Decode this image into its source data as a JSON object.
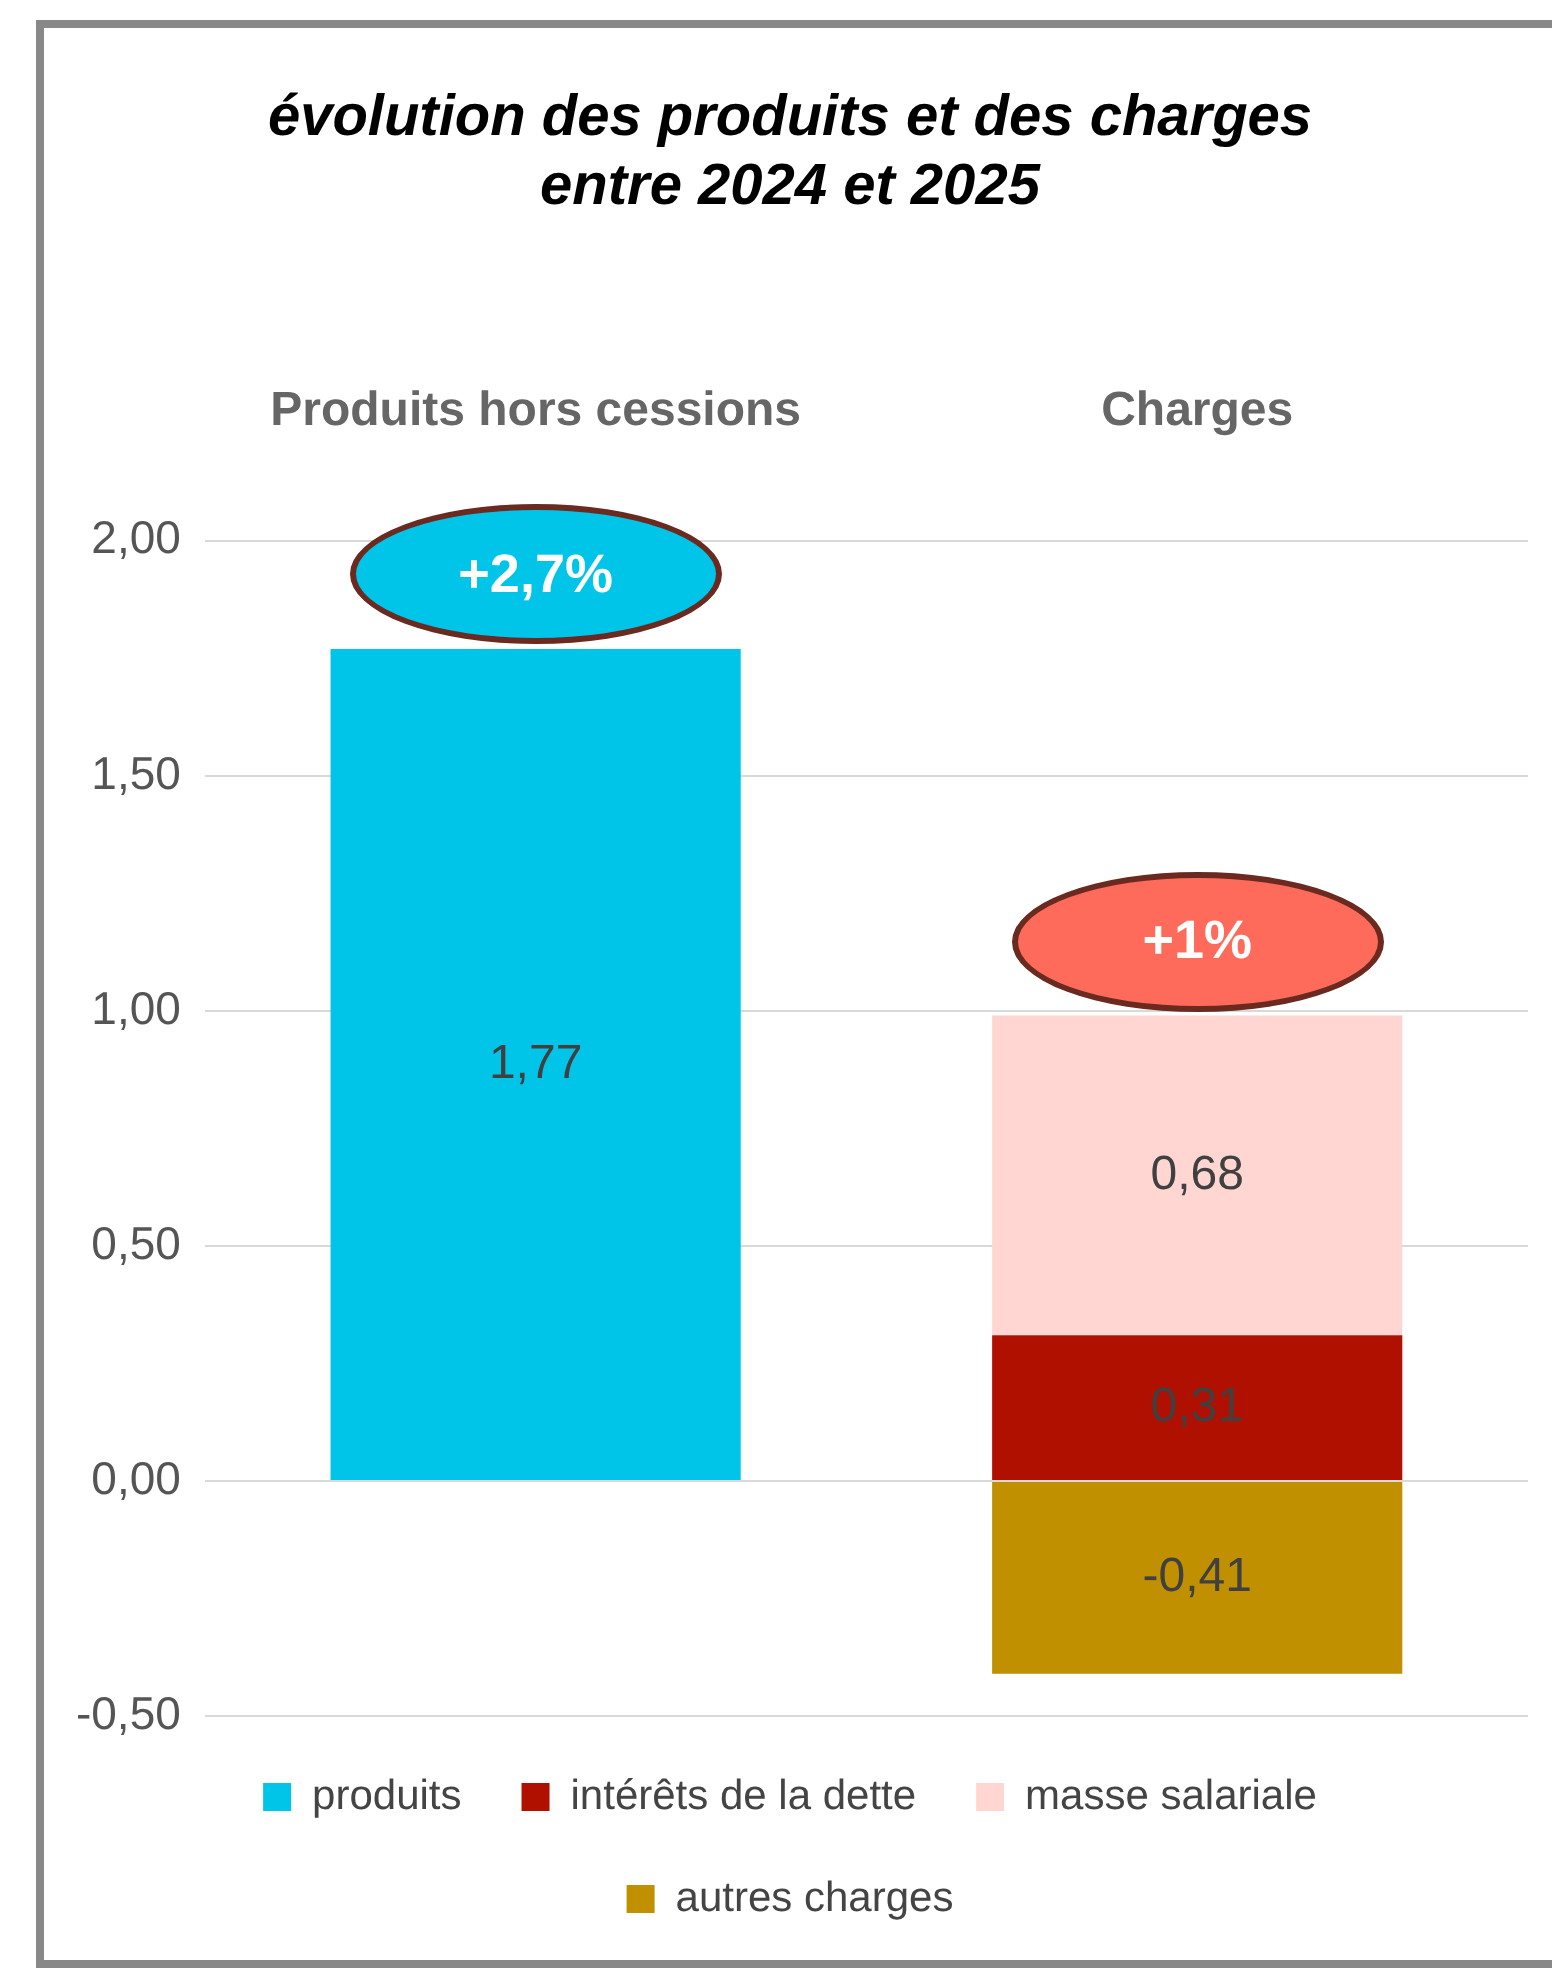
{
  "chart_data": {
    "type": "bar",
    "title": "évolution des produits et des charges\nentre 2024 et 2025",
    "categories": [
      "Produits hors cessions",
      "Charges"
    ],
    "stacked": true,
    "series": [
      {
        "name": "produits",
        "color": "#00c5e8",
        "values": [
          1.77,
          null
        ],
        "value_labels": [
          "1,77",
          null
        ]
      },
      {
        "name": "intérêts de la dette",
        "color": "#b01000",
        "values": [
          null,
          0.31
        ],
        "value_labels": [
          null,
          "0,31"
        ]
      },
      {
        "name": "masse salariale",
        "color": "#ffd6d2",
        "values": [
          null,
          0.68
        ],
        "value_labels": [
          null,
          "0,68"
        ]
      },
      {
        "name": "autres charges",
        "color": "#c09000",
        "values": [
          null,
          -0.41
        ],
        "value_labels": [
          null,
          "-0,41"
        ]
      }
    ],
    "ylim": [
      -0.5,
      2
    ],
    "yticks": [
      {
        "value": -0.5,
        "label": "-0,50"
      },
      {
        "value": 0,
        "label": "0,00"
      },
      {
        "value": 0.5,
        "label": "0,50"
      },
      {
        "value": 1,
        "label": "1,00"
      },
      {
        "value": 1.5,
        "label": "1,50"
      },
      {
        "value": 2,
        "label": "2,00"
      }
    ],
    "grid": "y",
    "legend": "bottom",
    "annotations": [
      {
        "text": "+2,7%",
        "x": "Produits hors cessions",
        "y": 1.77
      },
      {
        "text": "+1%",
        "x": "Charges",
        "y": 0.99
      }
    ]
  }
}
